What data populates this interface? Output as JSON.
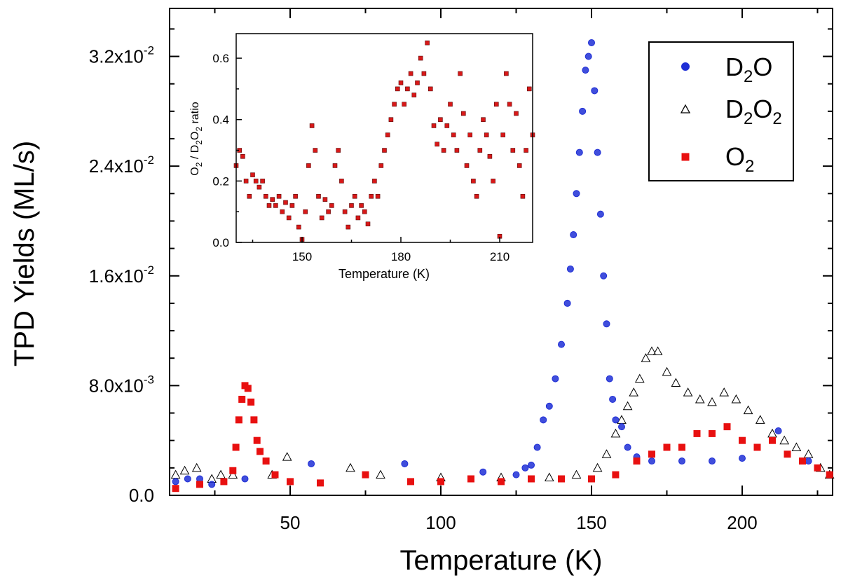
{
  "chart_data": [
    {
      "type": "scatter",
      "title": "",
      "xlabel": "Temperature (K)",
      "ylabel": "TPD Yields (ML/s)",
      "xlim": [
        10,
        230
      ],
      "ylim": [
        0,
        0.0355
      ],
      "x_ticks": [
        {
          "value": 50,
          "label": "50"
        },
        {
          "value": 100,
          "label": "100"
        },
        {
          "value": 150,
          "label": "150"
        },
        {
          "value": 200,
          "label": "200"
        }
      ],
      "y_ticks": [
        {
          "value": 0,
          "label": "0.0",
          "exp": ""
        },
        {
          "value": 0.008,
          "label": "8.0x10",
          "exp": "-3"
        },
        {
          "value": 0.016,
          "label": "1.6x10",
          "exp": "-2"
        },
        {
          "value": 0.024,
          "label": "2.4x10",
          "exp": "-2"
        },
        {
          "value": 0.032,
          "label": "3.2x10",
          "exp": "-2"
        }
      ],
      "legend": {
        "position": "top-right",
        "entries": [
          {
            "base": "D",
            "sub": "2",
            "rest": "O",
            "sub2": "",
            "marker": "circle",
            "color": "#1f2fd6"
          },
          {
            "base": "D",
            "sub": "2",
            "rest": "O",
            "sub2": "2",
            "marker": "triangle",
            "color": "#000000"
          },
          {
            "base": "O",
            "sub": "2",
            "rest": "",
            "sub2": "",
            "marker": "square",
            "color": "#e81010"
          }
        ]
      },
      "series": [
        {
          "name": "D2O",
          "marker": "circle",
          "color": "#1f2fd6",
          "points": [
            [
              12,
              0.001
            ],
            [
              16,
              0.0012
            ],
            [
              20,
              0.0012
            ],
            [
              24,
              0.0008
            ],
            [
              35,
              0.0012
            ],
            [
              57,
              0.0023
            ],
            [
              88,
              0.0023
            ],
            [
              114,
              0.0017
            ],
            [
              125,
              0.0015
            ],
            [
              128,
              0.002
            ],
            [
              130,
              0.0022
            ],
            [
              132,
              0.0035
            ],
            [
              134,
              0.0055
            ],
            [
              136,
              0.0065
            ],
            [
              138,
              0.0085
            ],
            [
              140,
              0.011
            ],
            [
              142,
              0.014
            ],
            [
              143,
              0.0165
            ],
            [
              144,
              0.019
            ],
            [
              145,
              0.022
            ],
            [
              146,
              0.025
            ],
            [
              147,
              0.028
            ],
            [
              148,
              0.031
            ],
            [
              149,
              0.032
            ],
            [
              150,
              0.033
            ],
            [
              151,
              0.0295
            ],
            [
              152,
              0.025
            ],
            [
              153,
              0.0205
            ],
            [
              154,
              0.016
            ],
            [
              155,
              0.0125
            ],
            [
              156,
              0.0085
            ],
            [
              157,
              0.007
            ],
            [
              158,
              0.0055
            ],
            [
              160,
              0.005
            ],
            [
              162,
              0.0035
            ],
            [
              165,
              0.0028
            ],
            [
              170,
              0.0025
            ],
            [
              180,
              0.0025
            ],
            [
              190,
              0.0025
            ],
            [
              200,
              0.0027
            ],
            [
              212,
              0.0047
            ],
            [
              222,
              0.0025
            ]
          ]
        },
        {
          "name": "D2O2",
          "marker": "triangle",
          "color": "#000000",
          "points": [
            [
              12,
              0.0015
            ],
            [
              15,
              0.0018
            ],
            [
              19,
              0.002
            ],
            [
              24,
              0.0012
            ],
            [
              27,
              0.0015
            ],
            [
              31,
              0.0015
            ],
            [
              44,
              0.0015
            ],
            [
              49,
              0.0028
            ],
            [
              70,
              0.002
            ],
            [
              80,
              0.0015
            ],
            [
              100,
              0.0013
            ],
            [
              120,
              0.0013
            ],
            [
              136,
              0.0013
            ],
            [
              145,
              0.0015
            ],
            [
              152,
              0.002
            ],
            [
              155,
              0.003
            ],
            [
              158,
              0.0045
            ],
            [
              160,
              0.0055
            ],
            [
              162,
              0.0065
            ],
            [
              164,
              0.0075
            ],
            [
              166,
              0.0085
            ],
            [
              168,
              0.01
            ],
            [
              170,
              0.0105
            ],
            [
              172,
              0.0105
            ],
            [
              175,
              0.009
            ],
            [
              178,
              0.0082
            ],
            [
              182,
              0.0075
            ],
            [
              186,
              0.007
            ],
            [
              190,
              0.0068
            ],
            [
              194,
              0.0075
            ],
            [
              198,
              0.007
            ],
            [
              202,
              0.0062
            ],
            [
              206,
              0.0055
            ],
            [
              210,
              0.0045
            ],
            [
              214,
              0.004
            ],
            [
              218,
              0.0035
            ],
            [
              222,
              0.003
            ],
            [
              226,
              0.002
            ],
            [
              229,
              0.0015
            ]
          ]
        },
        {
          "name": "O2",
          "marker": "square",
          "color": "#e81010",
          "points": [
            [
              12,
              0.0005
            ],
            [
              20,
              0.0008
            ],
            [
              28,
              0.001
            ],
            [
              31,
              0.0018
            ],
            [
              32,
              0.0035
            ],
            [
              33,
              0.0055
            ],
            [
              34,
              0.007
            ],
            [
              35,
              0.008
            ],
            [
              36,
              0.0078
            ],
            [
              37,
              0.0068
            ],
            [
              38,
              0.0055
            ],
            [
              39,
              0.004
            ],
            [
              40,
              0.0032
            ],
            [
              42,
              0.0025
            ],
            [
              45,
              0.0015
            ],
            [
              50,
              0.001
            ],
            [
              60,
              0.0009
            ],
            [
              75,
              0.0015
            ],
            [
              90,
              0.001
            ],
            [
              100,
              0.001
            ],
            [
              110,
              0.0012
            ],
            [
              120,
              0.001
            ],
            [
              130,
              0.0012
            ],
            [
              140,
              0.0012
            ],
            [
              150,
              0.0012
            ],
            [
              158,
              0.0015
            ],
            [
              165,
              0.0025
            ],
            [
              170,
              0.003
            ],
            [
              175,
              0.0035
            ],
            [
              180,
              0.0035
            ],
            [
              185,
              0.0045
            ],
            [
              190,
              0.0045
            ],
            [
              195,
              0.005
            ],
            [
              200,
              0.004
            ],
            [
              205,
              0.0035
            ],
            [
              210,
              0.004
            ],
            [
              215,
              0.003
            ],
            [
              220,
              0.0025
            ],
            [
              225,
              0.002
            ],
            [
              229,
              0.0015
            ]
          ]
        }
      ]
    },
    {
      "type": "scatter",
      "title": "",
      "xlabel": "Temperature (K)",
      "ylabel": {
        "p1": "O",
        "s1": "2",
        "p2": " / D",
        "s2": "2",
        "p3": "O",
        "s3": "2",
        "p4": " ratio"
      },
      "xlim": [
        130,
        220
      ],
      "ylim": [
        0,
        0.68
      ],
      "x_ticks": [
        {
          "value": 150,
          "label": "150"
        },
        {
          "value": 180,
          "label": "180"
        },
        {
          "value": 210,
          "label": "210"
        }
      ],
      "y_ticks": [
        {
          "value": 0,
          "label": "0.0"
        },
        {
          "value": 0.2,
          "label": "0.2"
        },
        {
          "value": 0.4,
          "label": "0.4"
        },
        {
          "value": 0.6,
          "label": "0.6"
        }
      ],
      "series": [
        {
          "name": "O2 / D2O2 ratio",
          "marker": "square",
          "color": "#d81818",
          "points": [
            [
              130,
              0.25
            ],
            [
              131,
              0.3
            ],
            [
              132,
              0.28
            ],
            [
              133,
              0.2
            ],
            [
              134,
              0.15
            ],
            [
              135,
              0.22
            ],
            [
              136,
              0.2
            ],
            [
              137,
              0.18
            ],
            [
              138,
              0.2
            ],
            [
              139,
              0.15
            ],
            [
              140,
              0.12
            ],
            [
              141,
              0.14
            ],
            [
              142,
              0.12
            ],
            [
              143,
              0.15
            ],
            [
              144,
              0.1
            ],
            [
              145,
              0.13
            ],
            [
              146,
              0.08
            ],
            [
              147,
              0.12
            ],
            [
              148,
              0.15
            ],
            [
              149,
              0.05
            ],
            [
              150,
              0.01
            ],
            [
              151,
              0.1
            ],
            [
              152,
              0.25
            ],
            [
              153,
              0.38
            ],
            [
              154,
              0.3
            ],
            [
              155,
              0.15
            ],
            [
              156,
              0.08
            ],
            [
              157,
              0.14
            ],
            [
              158,
              0.1
            ],
            [
              159,
              0.12
            ],
            [
              160,
              0.25
            ],
            [
              161,
              0.3
            ],
            [
              162,
              0.2
            ],
            [
              163,
              0.1
            ],
            [
              164,
              0.05
            ],
            [
              165,
              0.12
            ],
            [
              166,
              0.15
            ],
            [
              167,
              0.08
            ],
            [
              168,
              0.12
            ],
            [
              169,
              0.1
            ],
            [
              170,
              0.06
            ],
            [
              171,
              0.15
            ],
            [
              172,
              0.2
            ],
            [
              173,
              0.15
            ],
            [
              174,
              0.25
            ],
            [
              175,
              0.3
            ],
            [
              176,
              0.35
            ],
            [
              177,
              0.4
            ],
            [
              178,
              0.45
            ],
            [
              179,
              0.5
            ],
            [
              180,
              0.52
            ],
            [
              181,
              0.45
            ],
            [
              182,
              0.5
            ],
            [
              183,
              0.55
            ],
            [
              184,
              0.48
            ],
            [
              185,
              0.52
            ],
            [
              186,
              0.6
            ],
            [
              187,
              0.55
            ],
            [
              188,
              0.65
            ],
            [
              189,
              0.5
            ],
            [
              190,
              0.38
            ],
            [
              191,
              0.32
            ],
            [
              192,
              0.4
            ],
            [
              193,
              0.3
            ],
            [
              194,
              0.38
            ],
            [
              195,
              0.45
            ],
            [
              196,
              0.35
            ],
            [
              197,
              0.3
            ],
            [
              198,
              0.55
            ],
            [
              199,
              0.42
            ],
            [
              200,
              0.25
            ],
            [
              201,
              0.35
            ],
            [
              202,
              0.2
            ],
            [
              203,
              0.15
            ],
            [
              204,
              0.3
            ],
            [
              205,
              0.4
            ],
            [
              206,
              0.35
            ],
            [
              207,
              0.28
            ],
            [
              208,
              0.2
            ],
            [
              209,
              0.45
            ],
            [
              210,
              0.02
            ],
            [
              211,
              0.35
            ],
            [
              212,
              0.55
            ],
            [
              213,
              0.45
            ],
            [
              214,
              0.3
            ],
            [
              215,
              0.42
            ],
            [
              216,
              0.25
            ],
            [
              217,
              0.15
            ],
            [
              218,
              0.3
            ],
            [
              219,
              0.5
            ],
            [
              220,
              0.35
            ]
          ]
        }
      ]
    }
  ]
}
